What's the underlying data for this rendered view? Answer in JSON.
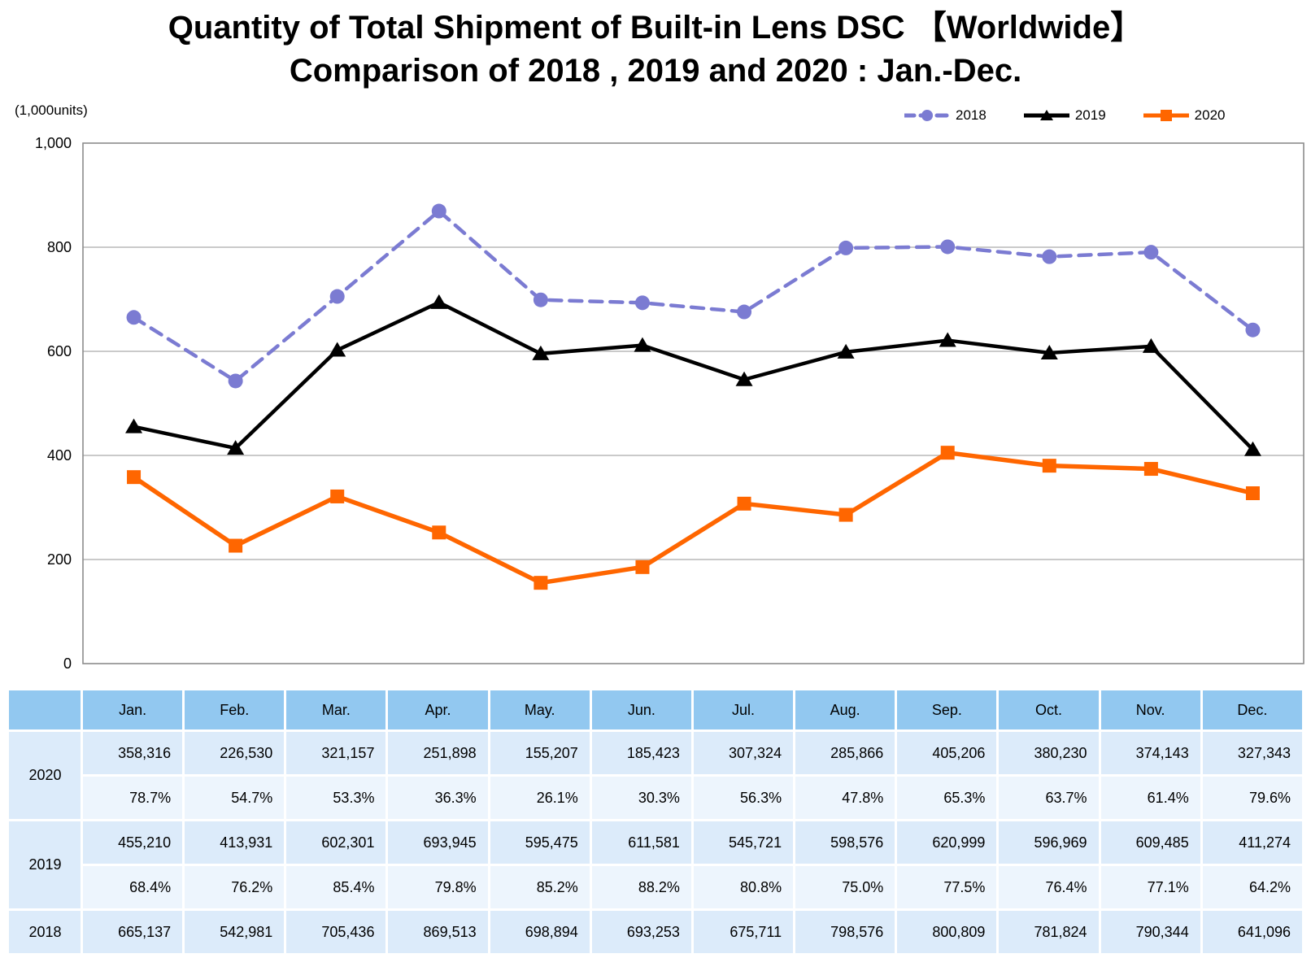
{
  "title": {
    "line1": "Quantity of Total Shipment of Built-in Lens DSC 【Worldwide】",
    "line2": "Comparison of 2018 , 2019 and 2020 : Jan.-Dec."
  },
  "chart_data": {
    "type": "line",
    "unit_label": "(1,000units)",
    "categories": [
      "Jan.",
      "Feb.",
      "Mar.",
      "Apr.",
      "May.",
      "Jun.",
      "Jul.",
      "Aug.",
      "Sep.",
      "Oct.",
      "Nov.",
      "Dec."
    ],
    "series": [
      {
        "name": "2018",
        "color": "#7b7bd2",
        "line": "dashed",
        "marker": "circle",
        "values_units": [
          665137,
          542981,
          705436,
          869513,
          698894,
          693253,
          675711,
          798576,
          800809,
          781824,
          790344,
          641096
        ]
      },
      {
        "name": "2019",
        "color": "#000000",
        "line": "solid",
        "marker": "triangle",
        "values_units": [
          455210,
          413931,
          602301,
          693945,
          595475,
          611581,
          545721,
          598576,
          620999,
          596969,
          609485,
          411274
        ]
      },
      {
        "name": "2020",
        "color": "#ff6600",
        "line": "solid",
        "marker": "square",
        "values_units": [
          358316,
          226530,
          321157,
          251898,
          155207,
          185423,
          307324,
          285866,
          405206,
          380230,
          374143,
          327343
        ]
      }
    ],
    "ylim": [
      0,
      1000
    ],
    "yticks": [
      {
        "label": "0",
        "value": 0
      },
      {
        "label": "200",
        "value": 200
      },
      {
        "label": "400",
        "value": 400
      },
      {
        "label": "600",
        "value": 600
      },
      {
        "label": "800",
        "value": 800
      },
      {
        "label": "1,000",
        "value": 1000
      }
    ],
    "grid": true,
    "legend_position": "top-right"
  },
  "table": {
    "corner_label": "",
    "months": [
      "Jan.",
      "Feb.",
      "Mar.",
      "Apr.",
      "May.",
      "Jun.",
      "Jul.",
      "Aug.",
      "Sep.",
      "Oct.",
      "Nov.",
      "Dec."
    ],
    "rows": [
      {
        "label": "2020",
        "units": [
          "358,316",
          "226,530",
          "321,157",
          "251,898",
          "155,207",
          "185,423",
          "307,324",
          "285,866",
          "405,206",
          "380,230",
          "374,143",
          "327,343"
        ],
        "yoy": [
          "78.7%",
          "54.7%",
          "53.3%",
          "36.3%",
          "26.1%",
          "30.3%",
          "56.3%",
          "47.8%",
          "65.3%",
          "63.7%",
          "61.4%",
          "79.6%"
        ]
      },
      {
        "label": "2019",
        "units": [
          "455,210",
          "413,931",
          "602,301",
          "693,945",
          "595,475",
          "611,581",
          "545,721",
          "598,576",
          "620,999",
          "596,969",
          "609,485",
          "411,274"
        ],
        "yoy": [
          "68.4%",
          "76.2%",
          "85.4%",
          "79.8%",
          "85.2%",
          "88.2%",
          "80.8%",
          "75.0%",
          "77.5%",
          "76.4%",
          "77.1%",
          "64.2%"
        ]
      },
      {
        "label": "2018",
        "units": [
          "665,137",
          "542,981",
          "705,436",
          "869,513",
          "698,894",
          "693,253",
          "675,711",
          "798,576",
          "800,809",
          "781,824",
          "790,344",
          "641,096"
        ]
      }
    ]
  },
  "colors": {
    "series_2018": "#7b7bd2",
    "series_2019": "#000000",
    "series_2020": "#ff6600",
    "gridline": "#b9b9b9",
    "plot_border": "#8c8c8c",
    "table_header_bg": "#92c8f0",
    "table_row_bg": "#dcebfa",
    "table_percent_row_bg": "#edf5fd"
  }
}
